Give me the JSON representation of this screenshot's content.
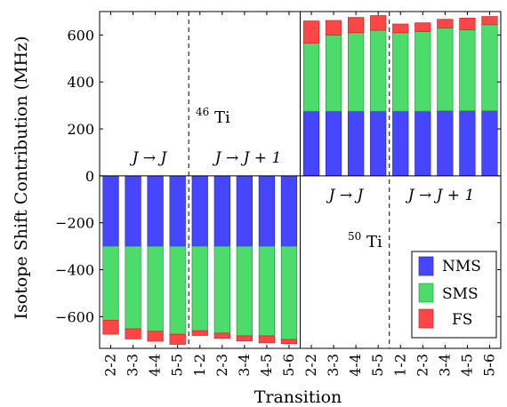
{
  "chart_data": {
    "type": "bar",
    "stacked": true,
    "ylabel": "Isotope Shift Contribution (MHz)",
    "xlabel": "Transition",
    "ylim": [
      -735,
      700
    ],
    "yticks": [
      600,
      400,
      200,
      0,
      -200,
      -400,
      -600
    ],
    "ytick_labels": [
      "600",
      "400",
      "200",
      "0",
      "−200",
      "−400",
      "−600"
    ],
    "categories": [
      "2-2",
      "3-3",
      "4-4",
      "5-5",
      "1-2",
      "2-3",
      "3-4",
      "4-5",
      "5-6",
      "2-2",
      "3-3",
      "4-4",
      "5-5",
      "1-2",
      "2-3",
      "3-4",
      "4-5",
      "5-6"
    ],
    "series": [
      {
        "name": "NMS",
        "color": "#4646ff",
        "values": [
          -300,
          -300,
          -300,
          -300,
          -300,
          -300,
          -300,
          -300,
          -300,
          275,
          275,
          275,
          275,
          275,
          275,
          277,
          277,
          277
        ]
      },
      {
        "name": "SMS",
        "color": "#4ddb6b",
        "values": [
          -315,
          -352,
          -362,
          -375,
          -360,
          -370,
          -382,
          -382,
          -397,
          290,
          325,
          335,
          345,
          335,
          340,
          353,
          345,
          367
        ]
      },
      {
        "name": "FS",
        "color": "#ff4646",
        "values": [
          -60,
          -43,
          -43,
          -43,
          -20,
          -22,
          -22,
          -30,
          -18,
          95,
          62,
          65,
          63,
          37,
          37,
          37,
          50,
          35
        ]
      }
    ],
    "dividers_after_index": [
      3,
      12
    ],
    "panel_split_after_index": 8,
    "legend": {
      "position": "bottom-right",
      "entries": [
        "NMS",
        "SMS",
        "FS"
      ]
    },
    "grid": false
  },
  "annotations": {
    "left_group1": "J → J",
    "left_group2": "J → J + 1",
    "ti46_sup": "46",
    "ti46_base": "Ti",
    "right_group1": "J → J",
    "right_group2": "J → J + 1",
    "ti50_sup": "50",
    "ti50_base": "Ti"
  }
}
